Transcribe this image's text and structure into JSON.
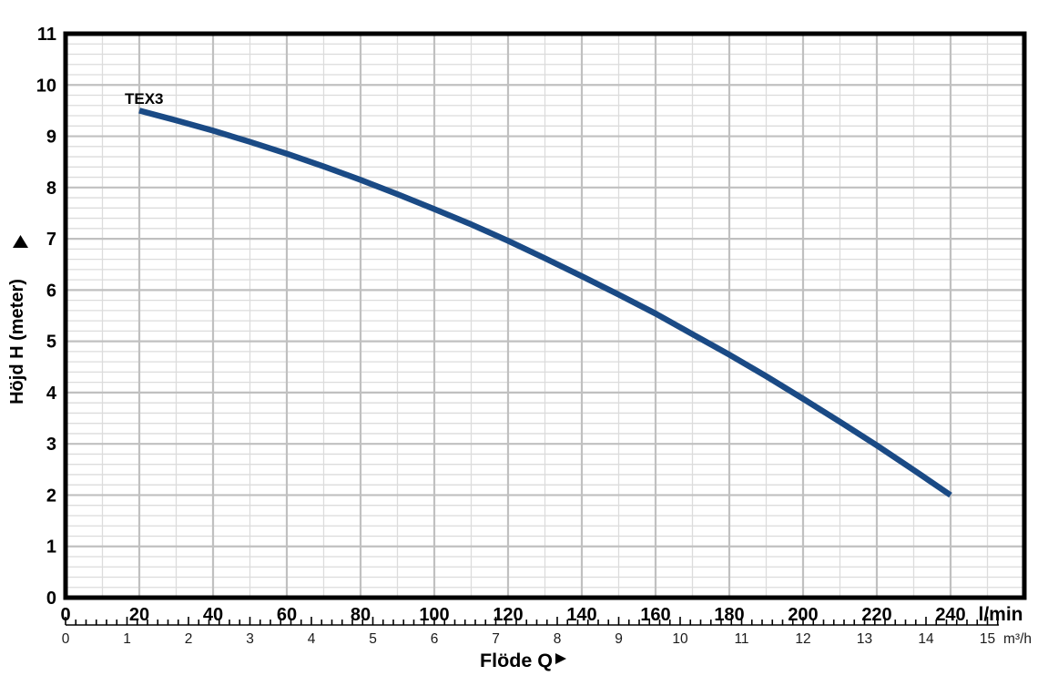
{
  "chart_data": {
    "type": "line",
    "title": "",
    "legend": false,
    "grid": true,
    "series": [
      {
        "name": "TEX3",
        "x_lmin": [
          20,
          30,
          40,
          50,
          60,
          70,
          80,
          90,
          100,
          110,
          120,
          130,
          140,
          150,
          160,
          170,
          180,
          190,
          200,
          210,
          220,
          230,
          240
        ],
        "y_head_m": [
          9.5,
          9.31,
          9.11,
          8.89,
          8.66,
          8.41,
          8.15,
          7.87,
          7.58,
          7.28,
          6.96,
          6.62,
          6.27,
          5.91,
          5.54,
          5.14,
          4.74,
          4.32,
          3.88,
          3.43,
          2.97,
          2.49,
          2.0
        ],
        "color": "#1a4a85",
        "label": "TEX3"
      }
    ],
    "x_axis": {
      "title_label": "Flöde Q",
      "arrow_icon": "▶",
      "unit_label": "l/min",
      "min": 0,
      "max": 260,
      "minor_step": 10,
      "major_step": 20,
      "tick_values": [
        0,
        20,
        40,
        60,
        80,
        100,
        120,
        140,
        160,
        180,
        200,
        220,
        240
      ],
      "tick_labels": [
        "0",
        "20",
        "40",
        "60",
        "80",
        "100",
        "120",
        "140",
        "160",
        "180",
        "200",
        "220",
        "240"
      ]
    },
    "x_axis_secondary": {
      "unit_label": "m³/h",
      "min": 0,
      "max": 15,
      "lmin_per_unit": 16.6667,
      "subdivisions_per_unit": 6,
      "tick_labels": [
        "0",
        "1",
        "2",
        "3",
        "4",
        "5",
        "6",
        "7",
        "8",
        "9",
        "10",
        "11",
        "12",
        "13",
        "14",
        "15"
      ]
    },
    "y_axis": {
      "title_label": "Höjd H (meter)",
      "arrow_icon": "▶",
      "min": 0,
      "max": 11,
      "minor_step": 0.2,
      "major_step": 1,
      "tick_labels": [
        "0",
        "1",
        "2",
        "3",
        "4",
        "5",
        "6",
        "7",
        "8",
        "9",
        "10",
        "11"
      ]
    },
    "colors": {
      "background": "#ffffff",
      "frame": "#000000",
      "grid_minor": "#dcdcdc",
      "grid_major": "#c0c0c0",
      "curve": "#1a4a85",
      "primary_text": "#000000",
      "secondary_text": "#1a1a1a"
    }
  }
}
